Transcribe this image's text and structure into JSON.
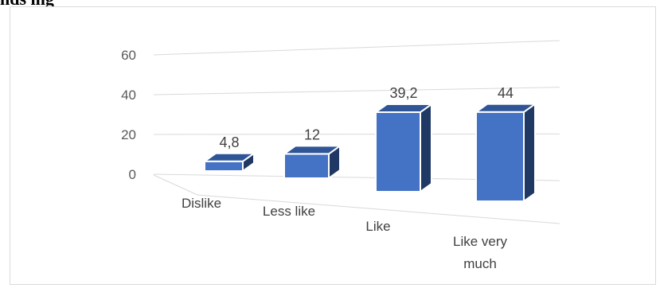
{
  "header_fragment": "nds ing",
  "chart_data": {
    "type": "bar",
    "style": "3d-column",
    "categories": [
      "Dislike",
      "Less like",
      "Like",
      "Like very much"
    ],
    "category_lines": [
      [
        "Dislike"
      ],
      [
        "Less like"
      ],
      [
        "Like"
      ],
      [
        "Like very",
        "much"
      ]
    ],
    "values": [
      4.8,
      12,
      39.2,
      44
    ],
    "data_labels": [
      "4,8",
      "12",
      "39,2",
      "44"
    ],
    "yticks": [
      0,
      20,
      40,
      60
    ],
    "ylim": [
      0,
      60
    ],
    "grid": true,
    "legend": "none",
    "title": "",
    "xlabel": "",
    "ylabel": "",
    "colors": {
      "front": "#4472c4",
      "top": "#2f5597",
      "side": "#203864",
      "grid": "#d9d9d9",
      "edge": "#ffffff"
    }
  }
}
